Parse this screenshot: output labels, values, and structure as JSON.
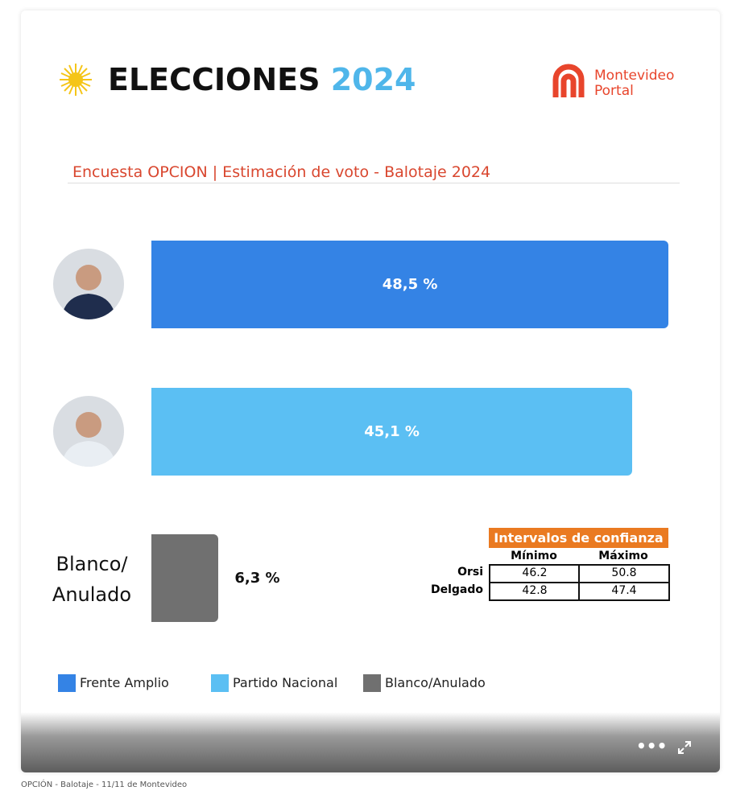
{
  "header": {
    "title": "ELECCIONES",
    "year": "2024",
    "logo_top": "Montevideo",
    "logo_bottom": "Portal"
  },
  "chart_data": {
    "type": "bar",
    "orientation": "horizontal",
    "title": "Encuesta OPCION | Estimación de voto - Balotaje 2024",
    "categories": [
      null,
      null,
      "Blanco/\nAnulado"
    ],
    "values": [
      48.5,
      45.1,
      6.3
    ],
    "value_labels": [
      "48,5 %",
      "45,1 %",
      "6,3 %"
    ],
    "legend": [
      {
        "name": "Frente Amplio",
        "color": "#3483e5"
      },
      {
        "name": "Partido Nacional",
        "color": "#5bbff3"
      },
      {
        "name": "Blanco/Anulado",
        "color": "#707070"
      }
    ]
  },
  "confidence_table": {
    "title": "Intervalos de confianza",
    "columns": [
      "Mínimo",
      "Máximo"
    ],
    "rows": [
      {
        "name": "Orsi",
        "values": [
          46.2,
          50.8
        ]
      },
      {
        "name": "Delgado",
        "values": [
          42.8,
          47.4
        ]
      }
    ]
  },
  "caption": "OPCIÓN - Balotaje - 11/11 de Montevideo"
}
